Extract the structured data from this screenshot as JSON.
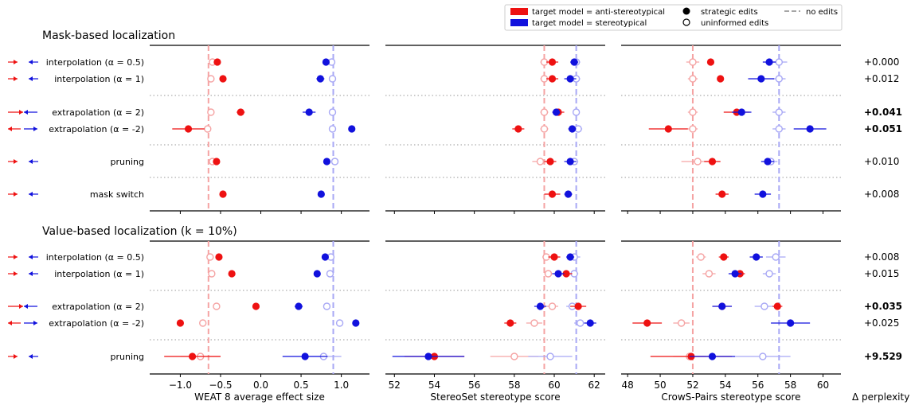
{
  "legend": {
    "red_label": "target model = anti-stereotypical",
    "blue_label": "target model = stereotypical",
    "strategic_label": "strategic edits",
    "uninformed_label": "uninformed edits",
    "noedit_label": "no edits"
  },
  "colors": {
    "anti": "#ee1111",
    "stereo": "#1111dd",
    "anti_ref": "#f5a3a3",
    "stereo_ref": "#a8a8f5",
    "overlap": "#9966cc"
  },
  "perplexity_header": "Δ perplexity",
  "chart_data": {
    "type": "scatter",
    "title": "",
    "panels": [
      {
        "name": "weat",
        "xlabel": "WEAT 8 average effect size",
        "xlim": [
          -1.38,
          1.35
        ],
        "ticks": [
          -1.0,
          -0.5,
          0.0,
          0.5,
          1.0
        ],
        "tick_labels": [
          "−1.0",
          "−0.5",
          "0.0",
          "0.5",
          "1.0"
        ],
        "ref_anti": -0.65,
        "ref_stereo": 0.9
      },
      {
        "name": "stereoset",
        "xlabel": "StereoSet stereotype score",
        "xlim": [
          51.55,
          62.55
        ],
        "ticks": [
          52,
          54,
          56,
          58,
          60,
          62
        ],
        "tick_labels": [
          "52",
          "54",
          "56",
          "58",
          "60",
          "62"
        ],
        "ref_anti": 59.5,
        "ref_stereo": 61.1
      },
      {
        "name": "crows",
        "xlabel": "CrowS-Pairs stereotype score",
        "xlim": [
          47.6,
          61.1
        ],
        "ticks": [
          48,
          50,
          52,
          54,
          56,
          58,
          60
        ],
        "tick_labels": [
          "48",
          "50",
          "52",
          "54",
          "56",
          "58",
          "60"
        ],
        "ref_anti": 52.0,
        "ref_stereo": 57.3
      }
    ],
    "sections": [
      {
        "title": "Mask-based localization",
        "groups": [
          {
            "rows": [
              {
                "label": "interpolation (α = 0.5)",
                "arrows": "in",
                "ppl": "+0.000",
                "bold": false,
                "weat": {
                  "as": [
                    -0.54,
                    0.01
                  ],
                  "au": [
                    -0.6,
                    0
                  ],
                  "ss": [
                    0.81,
                    0.01
                  ],
                  "su": [
                    0.88,
                    0
                  ]
                },
                "stereoset": {
                  "as": [
                    59.9,
                    0.3
                  ],
                  "au": [
                    59.5,
                    0.2
                  ],
                  "ss": [
                    61.0,
                    0.2
                  ],
                  "su": [
                    61.1,
                    0.2
                  ]
                },
                "crows": {
                  "as": [
                    53.1,
                    0.2
                  ],
                  "au": [
                    52.0,
                    0.4
                  ],
                  "ss": [
                    56.7,
                    0.4
                  ],
                  "su": [
                    57.3,
                    0.5
                  ]
                }
              },
              {
                "label": "interpolation (α = 1)",
                "arrows": "in",
                "ppl": "+0.012",
                "bold": false,
                "weat": {
                  "as": [
                    -0.47,
                    0.01
                  ],
                  "au": [
                    -0.62,
                    0
                  ],
                  "ss": [
                    0.74,
                    0.05
                  ],
                  "su": [
                    0.89,
                    0
                  ]
                },
                "stereoset": {
                  "as": [
                    59.9,
                    0.3
                  ],
                  "au": [
                    59.5,
                    0.2
                  ],
                  "ss": [
                    60.8,
                    0.3
                  ],
                  "su": [
                    61.1,
                    0.2
                  ]
                },
                "crows": {
                  "as": [
                    53.7,
                    0.1
                  ],
                  "au": [
                    52.0,
                    0.3
                  ],
                  "ss": [
                    56.2,
                    0.8
                  ],
                  "su": [
                    57.3,
                    0.4
                  ]
                }
              }
            ]
          },
          {
            "rows": [
              {
                "label": "extrapolation (α = 2)",
                "arrows": "in2",
                "ppl": "+0.041",
                "bold": true,
                "weat": {
                  "as": [
                    -0.25,
                    0.05
                  ],
                  "au": [
                    -0.62,
                    0
                  ],
                  "ss": [
                    0.6,
                    0.08
                  ],
                  "su": [
                    0.89,
                    0
                  ]
                },
                "stereoset": {
                  "as": [
                    60.2,
                    0.3
                  ],
                  "au": [
                    59.5,
                    0.2
                  ],
                  "ss": [
                    60.1,
                    0.2
                  ],
                  "su": [
                    61.1,
                    0.1
                  ]
                },
                "crows": {
                  "as": [
                    54.7,
                    0.8
                  ],
                  "au": [
                    52.0,
                    0.3
                  ],
                  "ss": [
                    55.0,
                    0.6
                  ],
                  "su": [
                    57.3,
                    0.4
                  ]
                }
              },
              {
                "label": "extrapolation (α = -2)",
                "arrows": "out",
                "ppl": "+0.051",
                "bold": true,
                "weat": {
                  "as": [
                    -0.9,
                    0.2
                  ],
                  "au": [
                    -0.66,
                    0
                  ],
                  "ss": [
                    1.13,
                    0.02
                  ],
                  "su": [
                    0.89,
                    0
                  ]
                },
                "stereoset": {
                  "as": [
                    58.2,
                    0.3
                  ],
                  "au": [
                    59.5,
                    0.2
                  ],
                  "ss": [
                    60.9,
                    0.2
                  ],
                  "su": [
                    61.2,
                    0.2
                  ]
                },
                "crows": {
                  "as": [
                    50.5,
                    1.2
                  ],
                  "au": [
                    52.0,
                    0.3
                  ],
                  "ss": [
                    59.2,
                    1.0
                  ],
                  "su": [
                    57.3,
                    0.4
                  ]
                }
              }
            ]
          },
          {
            "rows": [
              {
                "label": "pruning",
                "arrows": "in",
                "ppl": "+0.010",
                "bold": false,
                "weat": {
                  "as": [
                    -0.55,
                    0.02
                  ],
                  "au": [
                    -0.6,
                    0.03
                  ],
                  "ss": [
                    0.82,
                    0.01
                  ],
                  "su": [
                    0.92,
                    0.02
                  ]
                },
                "stereoset": {
                  "as": [
                    59.8,
                    0.3
                  ],
                  "au": [
                    59.3,
                    0.4
                  ],
                  "ss": [
                    60.8,
                    0.3
                  ],
                  "su": [
                    61.0,
                    0.2
                  ]
                },
                "crows": {
                  "as": [
                    53.2,
                    0.5
                  ],
                  "au": [
                    52.3,
                    1.0
                  ],
                  "ss": [
                    56.6,
                    0.4
                  ],
                  "su": [
                    56.8,
                    0.4
                  ]
                }
              }
            ]
          },
          {
            "rows": [
              {
                "label": "mask switch",
                "arrows": "in",
                "ppl": "+0.008",
                "bold": false,
                "weat": {
                  "as": [
                    -0.47,
                    0.01
                  ],
                  "ss": [
                    0.75,
                    0.04
                  ]
                },
                "stereoset": {
                  "as": [
                    59.9,
                    0.4
                  ],
                  "ss": [
                    60.7,
                    0.2
                  ]
                },
                "crows": {
                  "as": [
                    53.8,
                    0.4
                  ],
                  "ss": [
                    56.3,
                    0.5
                  ]
                }
              }
            ]
          }
        ]
      },
      {
        "title": "Value-based localization (k = 10%)",
        "groups": [
          {
            "rows": [
              {
                "label": "interpolation (α = 0.5)",
                "arrows": "in",
                "ppl": "+0.008",
                "bold": false,
                "weat": {
                  "as": [
                    -0.52,
                    0.02
                  ],
                  "au": [
                    -0.63,
                    0
                  ],
                  "ss": [
                    0.8,
                    0.02
                  ],
                  "su": [
                    0.87,
                    0
                  ]
                },
                "stereoset": {
                  "as": [
                    60.0,
                    0.3
                  ],
                  "au": [
                    59.6,
                    0.2
                  ],
                  "ss": [
                    60.8,
                    0.2
                  ],
                  "su": [
                    61.0,
                    0.3
                  ]
                },
                "crows": {
                  "as": [
                    53.9,
                    0.3
                  ],
                  "au": [
                    52.5,
                    0.3
                  ],
                  "ss": [
                    55.9,
                    0.4
                  ],
                  "su": [
                    57.1,
                    0.6
                  ]
                }
              },
              {
                "label": "interpolation (α = 1)",
                "arrows": "in",
                "ppl": "+0.015",
                "bold": false,
                "weat": {
                  "as": [
                    -0.36,
                    0.02
                  ],
                  "au": [
                    -0.61,
                    0
                  ],
                  "ss": [
                    0.7,
                    0.02
                  ],
                  "su": [
                    0.86,
                    0
                  ]
                },
                "stereoset": {
                  "as": [
                    60.6,
                    0.3
                  ],
                  "au": [
                    59.7,
                    0.2
                  ],
                  "ss": [
                    60.2,
                    0.3
                  ],
                  "su": [
                    61.0,
                    0.2
                  ]
                },
                "crows": {
                  "as": [
                    54.9,
                    0.3
                  ],
                  "au": [
                    53.0,
                    0.4
                  ],
                  "ss": [
                    54.6,
                    0.4
                  ],
                  "su": [
                    56.7,
                    0.4
                  ]
                }
              }
            ]
          },
          {
            "rows": [
              {
                "label": "extrapolation (α = 2)",
                "arrows": "in2",
                "ppl": "+0.035",
                "bold": true,
                "weat": {
                  "as": [
                    -0.06,
                    0.02
                  ],
                  "au": [
                    -0.55,
                    0
                  ],
                  "ss": [
                    0.47,
                    0.05
                  ],
                  "su": [
                    0.82,
                    0
                  ]
                },
                "stereoset": {
                  "as": [
                    61.2,
                    0.4
                  ],
                  "au": [
                    59.9,
                    0.3
                  ],
                  "ss": [
                    59.3,
                    0.3
                  ],
                  "su": [
                    60.9,
                    0.3
                  ]
                },
                "crows": {
                  "as": [
                    57.2,
                    0.3
                  ],
                  "au": [
                    53.8,
                    0.6
                  ],
                  "ss": [
                    53.8,
                    0.6
                  ],
                  "su": [
                    56.4,
                    0.6
                  ]
                }
              },
              {
                "label": "extrapolation (α = -2)",
                "arrows": "out",
                "ppl": "+0.025",
                "bold": false,
                "weat": {
                  "as": [
                    -1.0,
                    0.02
                  ],
                  "au": [
                    -0.72,
                    0
                  ],
                  "ss": [
                    1.18,
                    0.02
                  ],
                  "su": [
                    0.98,
                    0
                  ]
                },
                "stereoset": {
                  "as": [
                    57.8,
                    0.3
                  ],
                  "au": [
                    59.0,
                    0.4
                  ],
                  "ss": [
                    61.8,
                    0.3
                  ],
                  "su": [
                    61.3,
                    0.3
                  ]
                },
                "crows": {
                  "as": [
                    49.2,
                    0.9
                  ],
                  "au": [
                    51.3,
                    0.5
                  ],
                  "ss": [
                    58.0,
                    1.2
                  ],
                  "su": [
                    58.0,
                    0.3
                  ]
                }
              }
            ]
          },
          {
            "rows": [
              {
                "label": "pruning",
                "arrows": "in",
                "ppl": "+9.529",
                "bold": true,
                "weat": {
                  "as": [
                    -0.85,
                    0.35
                  ],
                  "au": [
                    -0.75,
                    0.25
                  ],
                  "ss": [
                    0.55,
                    0.28
                  ],
                  "su": [
                    0.78,
                    0.22
                  ]
                },
                "stereoset": {
                  "as": [
                    54.0,
                    1.5
                  ],
                  "au": [
                    58.0,
                    1.2
                  ],
                  "ss": [
                    53.7,
                    1.8
                  ],
                  "su": [
                    59.8,
                    1.1
                  ]
                },
                "crows": {
                  "as": [
                    51.9,
                    2.5
                  ],
                  "au": [
                    51.8,
                    1.0
                  ],
                  "ss": [
                    53.2,
                    1.4
                  ],
                  "su": [
                    56.3,
                    1.7
                  ]
                }
              }
            ]
          }
        ]
      }
    ]
  }
}
